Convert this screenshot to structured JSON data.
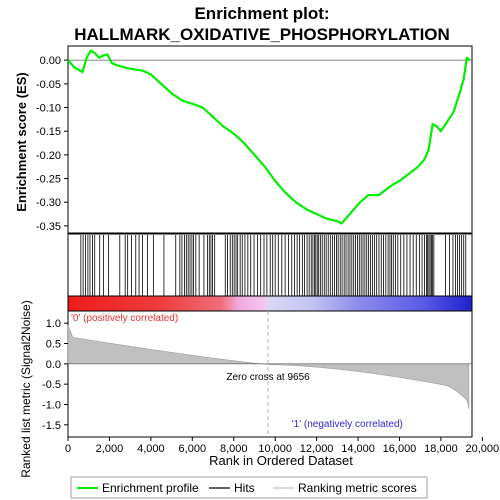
{
  "chart_data": {
    "type": "line",
    "title_line1": "Enrichment plot:",
    "title_line2": "HALLMARK_OXIDATIVE_PHOSPHORYLATION",
    "xlabel": "Rank in Ordered Dataset",
    "ylabel_top": "Enrichment score (ES)",
    "ylabel_bottom": "Ranked list metric (Signal2Noise)",
    "xlim": [
      0,
      19500
    ],
    "x_ticks": [
      0,
      2000,
      4000,
      6000,
      8000,
      10000,
      12000,
      14000,
      16000,
      18000,
      20000
    ],
    "x_tick_labels": [
      "0",
      "2,000",
      "4,000",
      "6,000",
      "8,000",
      "10,000",
      "12,000",
      "14,000",
      "16,000",
      "18,000",
      "20,000"
    ],
    "es_ylim": [
      -0.365,
      0.03
    ],
    "es_ticks": [
      0.0,
      -0.05,
      -0.1,
      -0.15,
      -0.2,
      -0.25,
      -0.3,
      -0.35
    ],
    "es_tick_labels": [
      "0.00",
      "-0.05",
      "-0.10",
      "-0.15",
      "-0.20",
      "-0.25",
      "-0.30",
      "-0.35"
    ],
    "metric_ylim": [
      -1.8,
      1.3
    ],
    "metric_ticks": [
      1.0,
      0.5,
      0.0,
      -0.5,
      -1.0,
      -1.5
    ],
    "metric_tick_labels": [
      "1.0",
      "0.5",
      "0.0",
      "-0.5",
      "-1.0",
      "-1.5"
    ],
    "enrichment_profile": {
      "x": [
        0,
        300,
        700,
        900,
        1100,
        1300,
        1500,
        1700,
        1900,
        2100,
        2300,
        2500,
        2700,
        3000,
        3300,
        3600,
        4000,
        4500,
        5000,
        5500,
        6000,
        6500,
        7000,
        7500,
        8000,
        8500,
        9000,
        9500,
        10000,
        10500,
        11000,
        11500,
        12000,
        12500,
        13000,
        13200,
        13500,
        13800,
        14100,
        14500,
        15000,
        15300,
        15600,
        16000,
        16300,
        16600,
        16900,
        17200,
        17400,
        17600,
        17800,
        18000,
        18300,
        18600,
        18900,
        19100,
        19250,
        19400
      ],
      "y": [
        0.0,
        -0.015,
        -0.025,
        0.005,
        0.02,
        0.015,
        0.005,
        0.01,
        0.012,
        -0.005,
        -0.01,
        -0.012,
        -0.015,
        -0.018,
        -0.02,
        -0.022,
        -0.03,
        -0.05,
        -0.07,
        -0.085,
        -0.092,
        -0.1,
        -0.12,
        -0.14,
        -0.155,
        -0.175,
        -0.2,
        -0.225,
        -0.255,
        -0.28,
        -0.3,
        -0.315,
        -0.325,
        -0.335,
        -0.34,
        -0.345,
        -0.33,
        -0.315,
        -0.3,
        -0.285,
        -0.285,
        -0.275,
        -0.265,
        -0.255,
        -0.245,
        -0.235,
        -0.225,
        -0.21,
        -0.19,
        -0.135,
        -0.14,
        -0.15,
        -0.13,
        -0.11,
        -0.07,
        -0.04,
        0.005,
        0.0
      ]
    },
    "hits": [
      620,
      730,
      850,
      960,
      1060,
      1180,
      1290,
      1530,
      1710,
      1950,
      2500,
      2760,
      2880,
      3070,
      3270,
      3430,
      3600,
      3840,
      4120,
      4630,
      5200,
      5400,
      5500,
      5620,
      5710,
      5800,
      5890,
      5980,
      6060,
      6170,
      6330,
      6560,
      6730,
      6820,
      6900,
      6980,
      7080,
      7590,
      7700,
      7830,
      7930,
      8020,
      8110,
      8190,
      8310,
      8410,
      8540,
      8680,
      8820,
      8980,
      9150,
      9300,
      9460,
      9600,
      9760,
      9880,
      10000,
      10150,
      10320,
      10480,
      10640,
      10800,
      10930,
      11060,
      11180,
      11310,
      11420,
      11540,
      11640,
      11740,
      11820,
      11900,
      11960,
      12030,
      12100,
      12180,
      12270,
      12370,
      12460,
      12560,
      12660,
      12760,
      12860,
      12960,
      13040,
      13140,
      13230,
      13330,
      13420,
      13520,
      13610,
      13700,
      13790,
      13880,
      13970,
      14060,
      14150,
      14240,
      14330,
      14420,
      14510,
      14600,
      14700,
      14800,
      14900,
      15010,
      15120,
      15230,
      15340,
      15450,
      15540,
      15620,
      15700,
      15800,
      15920,
      16060,
      16210,
      16360,
      16510,
      16660,
      16810,
      16960,
      17090,
      17210,
      17300,
      17360,
      17420,
      17480,
      17540,
      17600,
      17660,
      18220,
      18410,
      18580,
      18700,
      18800,
      18900,
      19000,
      19100,
      19200
    ],
    "zero_cross_label": "Zero cross at 9656",
    "zero_cross_x": 9656,
    "pos_label": "'0' (positively correlated)",
    "neg_label": "'1' (negatively correlated)",
    "legend": [
      "Enrichment profile",
      "Hits",
      "Ranking metric scores"
    ],
    "colors": {
      "profile": "#00ee00",
      "hits": "#000000",
      "metric_fill": "#c0c0c0",
      "zero_line": "#b0b0b0",
      "pos_label": "#e83030",
      "neg_label": "#2b2bd8"
    }
  }
}
